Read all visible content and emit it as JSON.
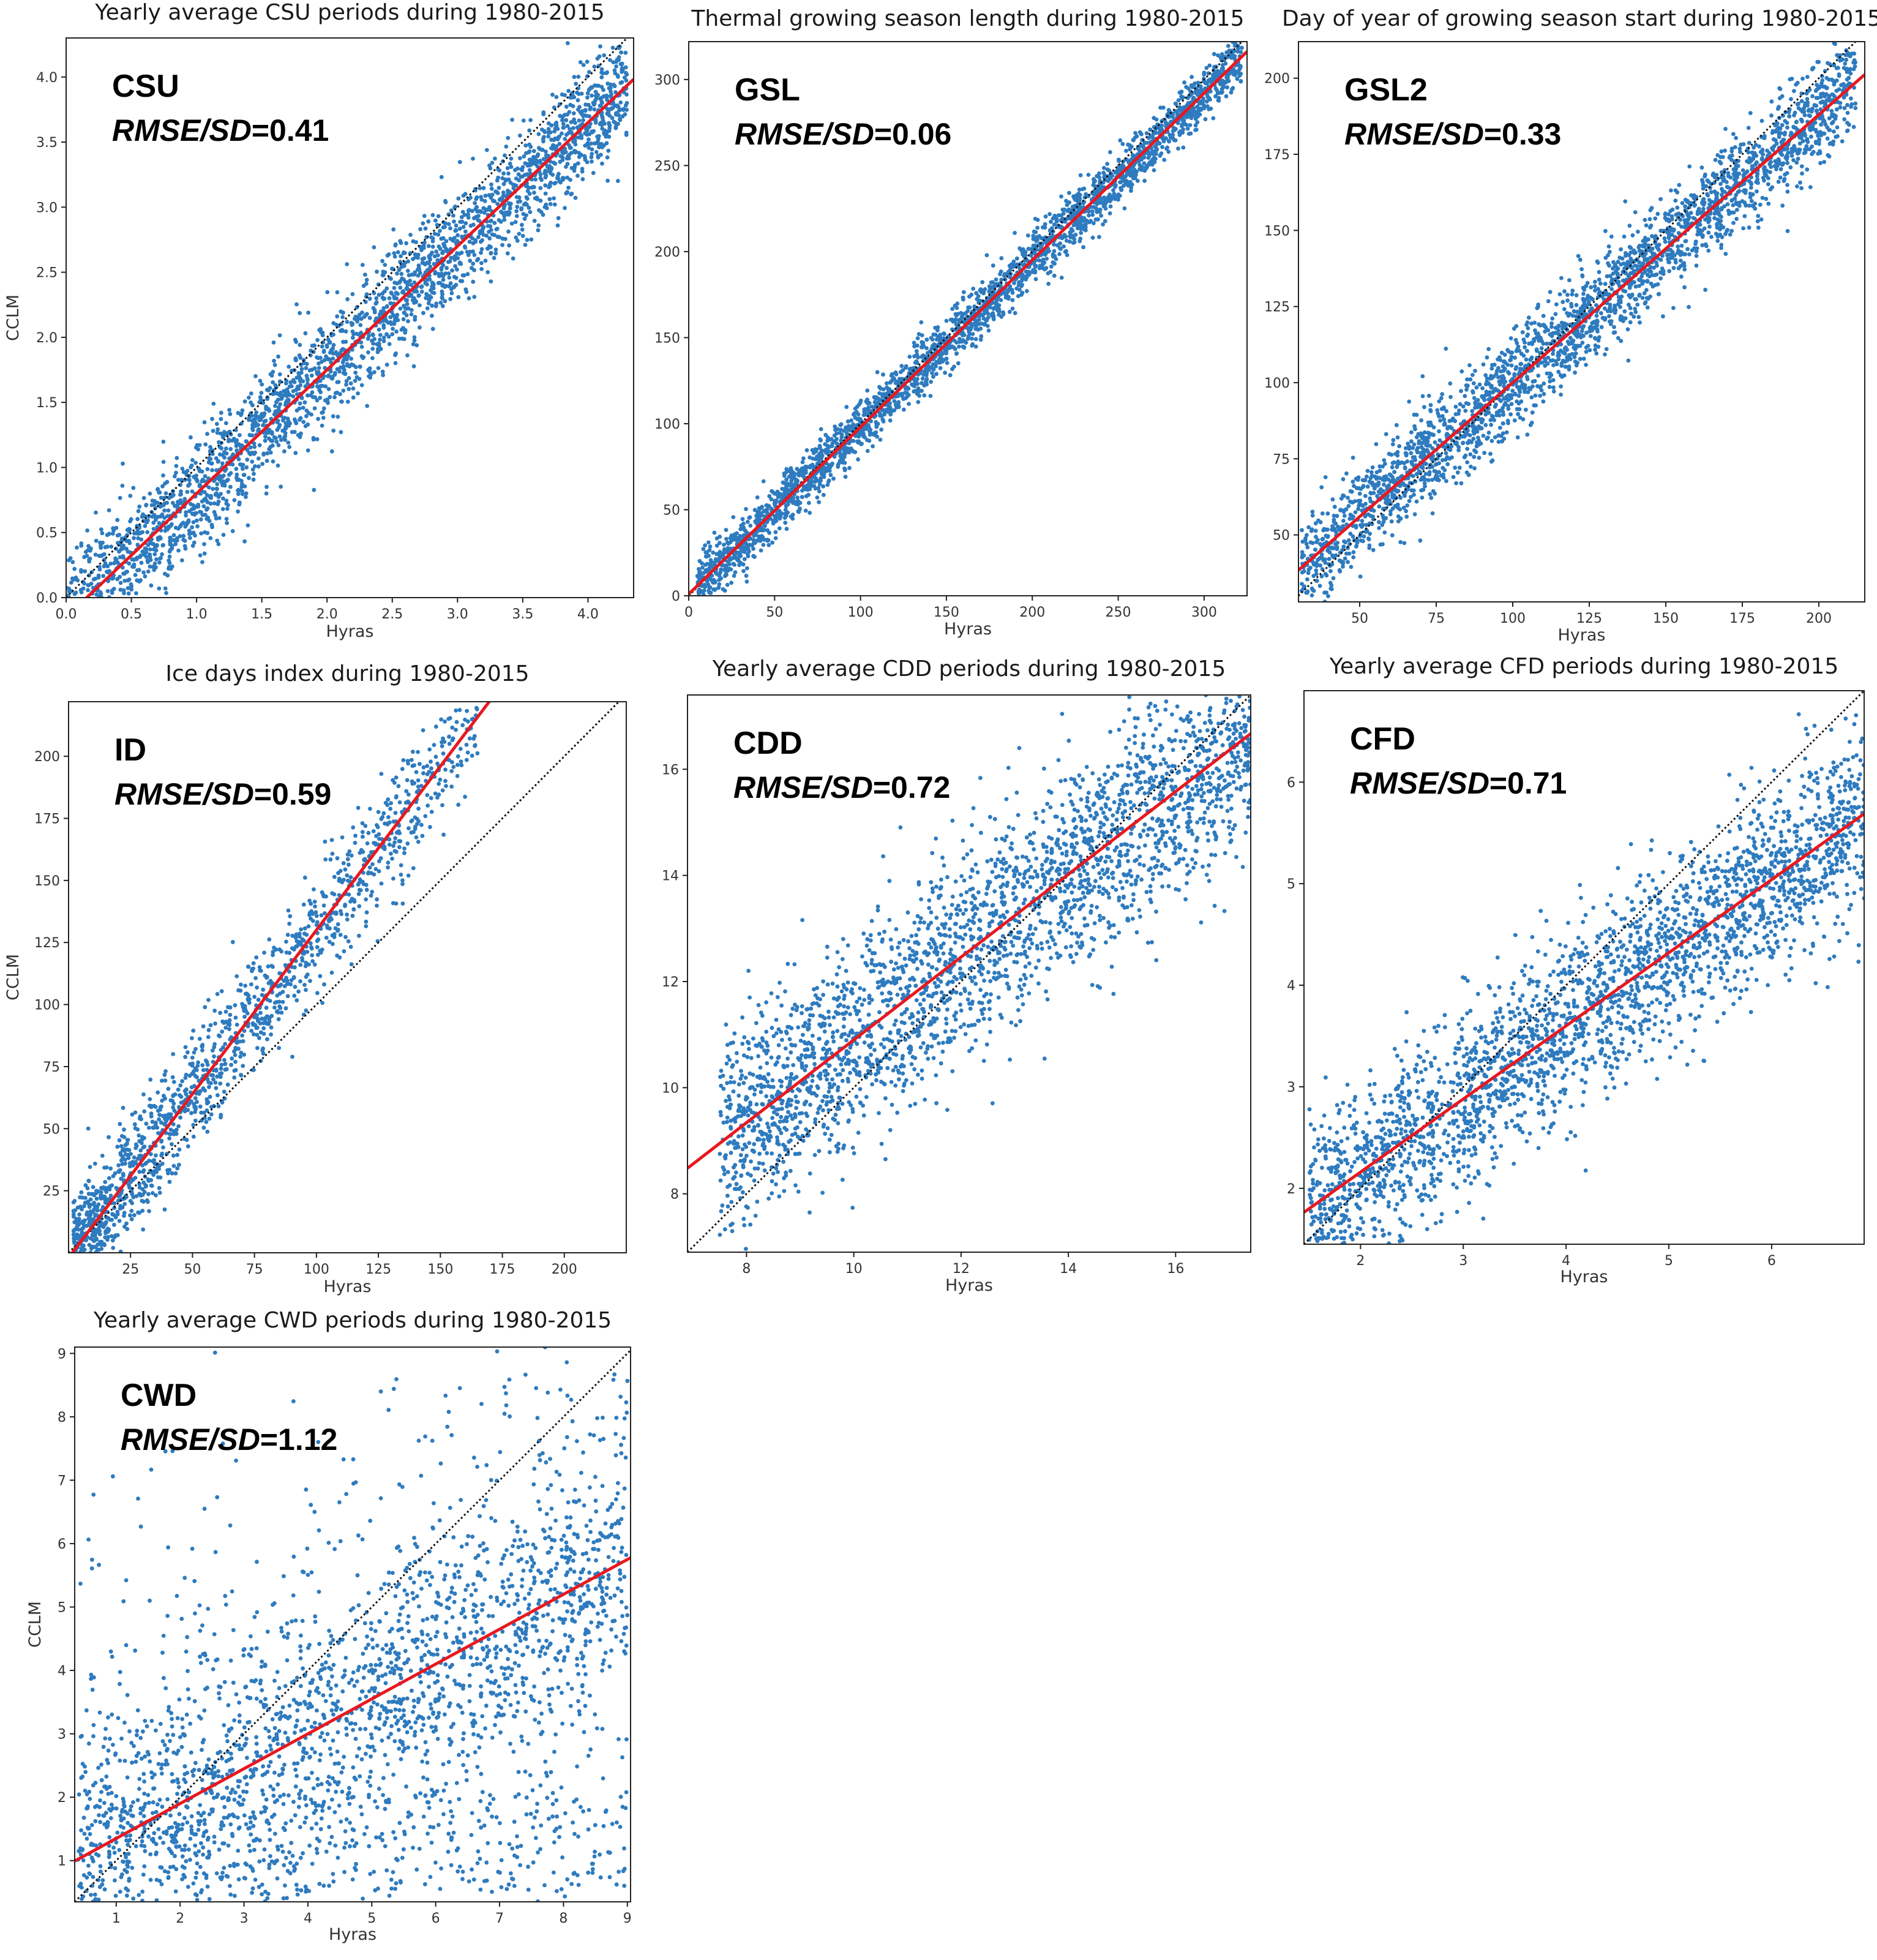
{
  "colors": {
    "points": "#2e7bbf",
    "fit_line": "#e8181f",
    "identity_line": "#111111"
  },
  "chart_data": [
    {
      "id": "csu",
      "type": "scatter",
      "title": "Yearly average CSU periods during 1980-2015",
      "label": "CSU",
      "metric_name": "RMSE/SD",
      "metric_value": "=0.41",
      "xlabel": "Hyras",
      "ylabel": "CCLM",
      "xlim": [
        0,
        4.35
      ],
      "ylim": [
        0,
        4.3
      ],
      "xticks": [
        "0.0",
        "0.5",
        "1.0",
        "1.5",
        "2.0",
        "2.5",
        "3.0",
        "3.5",
        "4.0"
      ],
      "yticks": [
        "0.0",
        "0.5",
        "1.0",
        "1.5",
        "2.0",
        "2.5",
        "3.0",
        "3.5",
        "4.0"
      ],
      "identity": true,
      "fit": {
        "slope": 0.95,
        "intercept": -0.15
      },
      "cloud": {
        "xmin": 0.0,
        "xmax": 4.3,
        "spread": 0.22,
        "density": "high"
      }
    },
    {
      "id": "gsl",
      "type": "scatter",
      "title": "Thermal growing season length during 1980-2015",
      "label": "GSL",
      "metric_name": "RMSE/SD",
      "metric_value": "=0.06",
      "xlabel": "Hyras",
      "ylabel": "",
      "xlim": [
        0,
        325
      ],
      "ylim": [
        0,
        322
      ],
      "xticks": [
        "0",
        "50",
        "100",
        "150",
        "200",
        "250",
        "300"
      ],
      "yticks": [
        "0",
        "50",
        "100",
        "150",
        "200",
        "250",
        "300"
      ],
      "identity": true,
      "fit": {
        "slope": 0.97,
        "intercept": 1
      },
      "cloud": {
        "xmin": 5,
        "xmax": 322,
        "spread": 8,
        "density": "high"
      }
    },
    {
      "id": "gsl2",
      "type": "scatter",
      "title": "Day of year of growing season start during 1980-2015",
      "label": "GSL2",
      "metric_name": "RMSE/SD",
      "metric_value": "=0.33",
      "xlabel": "Hyras",
      "ylabel": "",
      "xlim": [
        30,
        215
      ],
      "ylim": [
        28,
        212
      ],
      "xticks": [
        "50",
        "75",
        "100",
        "125",
        "150",
        "175",
        "200"
      ],
      "yticks": [
        "50",
        "75",
        "100",
        "125",
        "150",
        "175",
        "200"
      ],
      "identity": true,
      "fit": {
        "slope": 0.88,
        "intercept": 12
      },
      "cloud": {
        "xmin": 31,
        "xmax": 212,
        "spread": 8,
        "density": "high"
      }
    },
    {
      "id": "id",
      "type": "scatter",
      "title": "Ice days index during 1980-2015",
      "label": "ID",
      "metric_name": "RMSE/SD",
      "metric_value": "=0.59",
      "xlabel": "Hyras",
      "ylabel": "CCLM",
      "xlim": [
        0,
        225
      ],
      "ylim": [
        0,
        222
      ],
      "xticks": [
        "25",
        "50",
        "75",
        "100",
        "125",
        "150",
        "175",
        "200"
      ],
      "yticks": [
        "25",
        "50",
        "75",
        "100",
        "125",
        "150",
        "175",
        "200"
      ],
      "identity": true,
      "fit": {
        "slope": 1.32,
        "intercept": -2
      },
      "cloud": {
        "xmin": 2,
        "xmax": 165,
        "spread": 12,
        "density": "medium"
      }
    },
    {
      "id": "cdd",
      "type": "scatter",
      "title": "Yearly average CDD periods during 1980-2015",
      "label": "CDD",
      "metric_name": "RMSE/SD",
      "metric_value": "=0.72",
      "xlabel": "Hyras",
      "ylabel": "",
      "xlim": [
        6.9,
        17.4
      ],
      "ylim": [
        6.9,
        17.4
      ],
      "xticks": [
        "8",
        "10",
        "12",
        "14",
        "16"
      ],
      "yticks": [
        "8",
        "10",
        "12",
        "14",
        "16"
      ],
      "identity": true,
      "fit": {
        "slope": 0.78,
        "intercept": 3.1
      },
      "cloud": {
        "xmin": 7.5,
        "xmax": 17.4,
        "spread": 1.0,
        "density": "high"
      }
    },
    {
      "id": "cfd",
      "type": "scatter",
      "title": "Yearly average CFD periods during 1980-2015",
      "label": "CFD",
      "metric_name": "RMSE/SD",
      "metric_value": "=0.71",
      "xlabel": "Hyras",
      "ylabel": "",
      "xlim": [
        1.45,
        6.9
      ],
      "ylim": [
        1.45,
        6.9
      ],
      "xticks": [
        "2",
        "3",
        "4",
        "5",
        "6"
      ],
      "yticks": [
        "2",
        "3",
        "4",
        "5",
        "6"
      ],
      "identity": true,
      "fit": {
        "slope": 0.72,
        "intercept": 0.72
      },
      "cloud": {
        "xmin": 1.5,
        "xmax": 6.9,
        "spread": 0.45,
        "density": "high"
      }
    },
    {
      "id": "cwd",
      "type": "scatter",
      "title": "Yearly average CWD periods during 1980-2015",
      "label": "CWD",
      "metric_name": "RMSE/SD",
      "metric_value": "=1.12",
      "xlabel": "Hyras",
      "ylabel": "CCLM",
      "xlim": [
        0.35,
        9.05
      ],
      "ylim": [
        0.35,
        9.1
      ],
      "xticks": [
        "1",
        "2",
        "3",
        "4",
        "5",
        "6",
        "7",
        "8",
        "9"
      ],
      "yticks": [
        "1",
        "2",
        "3",
        "4",
        "5",
        "6",
        "7",
        "8",
        "9"
      ],
      "identity": true,
      "fit": {
        "slope": 0.55,
        "intercept": 0.8
      },
      "cloud": {
        "xmin": 0.4,
        "xmax": 9.0,
        "spread": 1.1,
        "density": "high"
      }
    }
  ]
}
